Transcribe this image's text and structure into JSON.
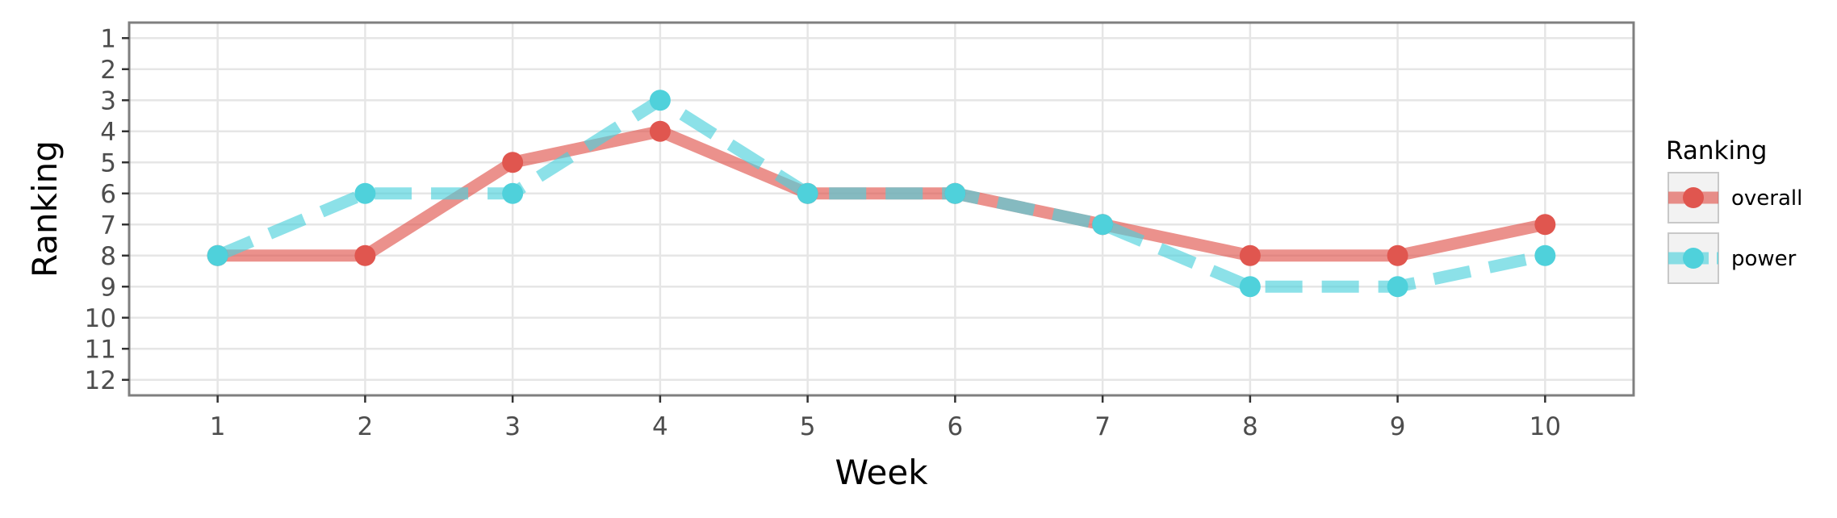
{
  "chart_data": {
    "type": "line",
    "xlabel": "Week",
    "ylabel": "Ranking",
    "x": [
      1,
      2,
      3,
      4,
      5,
      6,
      7,
      8,
      9,
      10
    ],
    "x_ticks": [
      "1",
      "2",
      "3",
      "4",
      "5",
      "6",
      "7",
      "8",
      "9",
      "10"
    ],
    "y_ticks": [
      "1",
      "2",
      "3",
      "4",
      "5",
      "6",
      "7",
      "8",
      "9",
      "10",
      "11",
      "12"
    ],
    "xlim": [
      0.4,
      10.6
    ],
    "ylim": [
      12.5,
      0.5
    ],
    "y_reversed": true,
    "grid": true,
    "legend": {
      "title": "Ranking",
      "placement": "right"
    },
    "series": [
      {
        "name": "overall",
        "color": "#E0564F",
        "line_style": "solid",
        "values": [
          8,
          8,
          5,
          4,
          6,
          6,
          7,
          8,
          8,
          7
        ]
      },
      {
        "name": "power",
        "color": "#4FD1DB",
        "line_style": "dashed",
        "values": [
          8,
          6,
          6,
          3,
          6,
          6,
          7,
          9,
          9,
          8
        ]
      }
    ]
  }
}
